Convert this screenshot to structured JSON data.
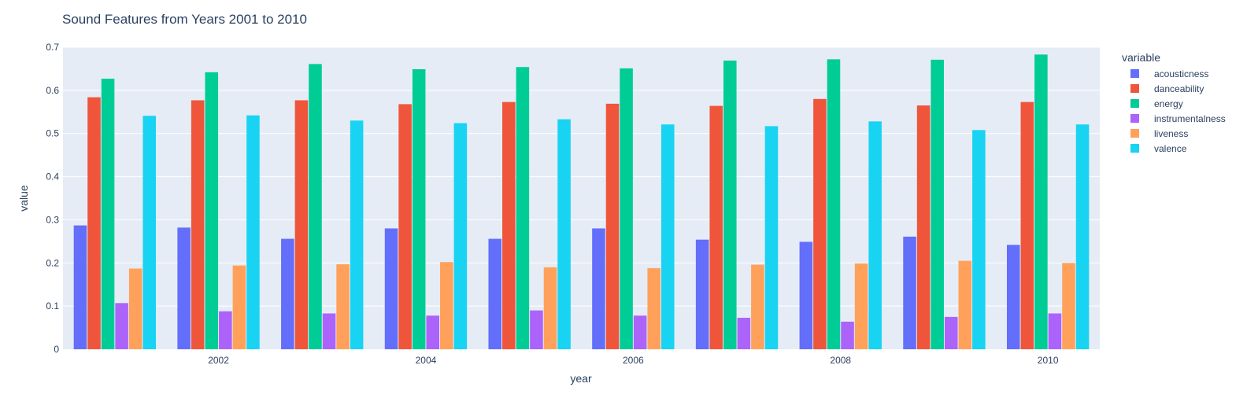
{
  "chart_data": {
    "type": "bar",
    "title": "Sound Features from Years 2001 to 2010",
    "xlabel": "year",
    "ylabel": "value",
    "ylim": [
      0,
      0.7
    ],
    "yticks": [
      0,
      0.1,
      0.2,
      0.3,
      0.4,
      0.5,
      0.6,
      0.7
    ],
    "ytick_labels": [
      "0",
      "0.1",
      "0.2",
      "0.3",
      "0.4",
      "0.5",
      "0.6",
      "0.7"
    ],
    "categories": [
      2001,
      2002,
      2003,
      2004,
      2005,
      2006,
      2007,
      2008,
      2009,
      2010
    ],
    "xticks": [
      2002,
      2004,
      2006,
      2008,
      2010
    ],
    "xtick_labels": [
      "2002",
      "2004",
      "2006",
      "2008",
      "2010"
    ],
    "grid": true,
    "legend_title": "variable",
    "legend_position": "right",
    "background_color": "#e5ecf6",
    "series": [
      {
        "name": "acousticness",
        "color": "#636efa",
        "values": [
          0.287,
          0.282,
          0.256,
          0.28,
          0.256,
          0.28,
          0.254,
          0.249,
          0.261,
          0.242
        ]
      },
      {
        "name": "danceability",
        "color": "#EF553B",
        "values": [
          0.584,
          0.577,
          0.577,
          0.568,
          0.573,
          0.569,
          0.564,
          0.58,
          0.565,
          0.573
        ]
      },
      {
        "name": "energy",
        "color": "#00cc96",
        "values": [
          0.627,
          0.642,
          0.661,
          0.649,
          0.654,
          0.651,
          0.669,
          0.672,
          0.671,
          0.683
        ]
      },
      {
        "name": "instrumentalness",
        "color": "#ab63fa",
        "values": [
          0.107,
          0.088,
          0.083,
          0.078,
          0.09,
          0.078,
          0.073,
          0.064,
          0.075,
          0.083
        ]
      },
      {
        "name": "liveness",
        "color": "#FFA15A",
        "values": [
          0.187,
          0.194,
          0.197,
          0.202,
          0.19,
          0.188,
          0.196,
          0.199,
          0.205,
          0.2
        ]
      },
      {
        "name": "valence",
        "color": "#19d3f3",
        "values": [
          0.541,
          0.542,
          0.53,
          0.524,
          0.533,
          0.521,
          0.517,
          0.528,
          0.508,
          0.521
        ]
      }
    ]
  }
}
